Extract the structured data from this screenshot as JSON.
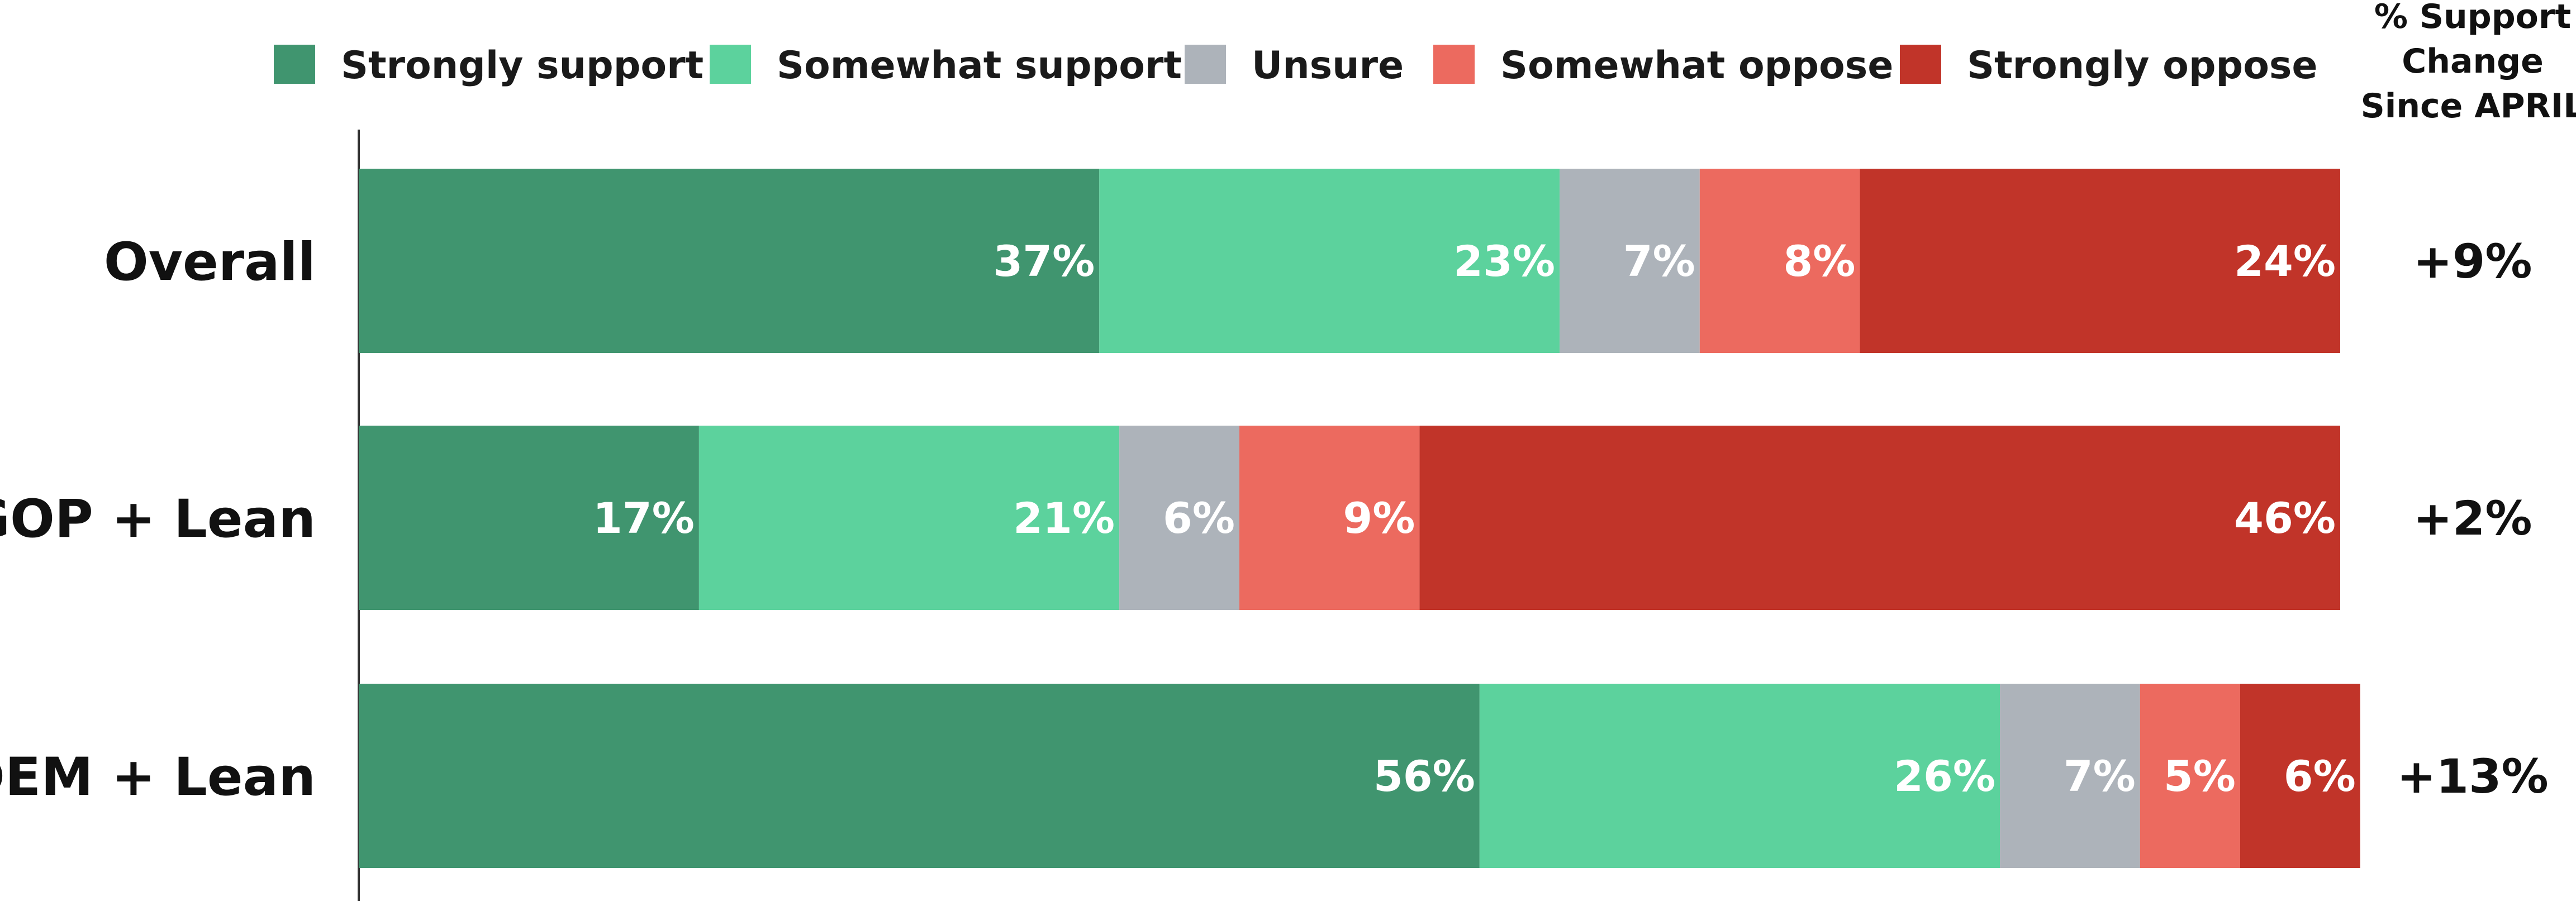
{
  "chart_data": {
    "type": "bar",
    "orientation": "horizontal",
    "stacked": true,
    "categories": [
      "Overall",
      "GOP + Lean",
      "DEM + Lean"
    ],
    "series": [
      {
        "name": "Strongly support",
        "color": "#40956F",
        "values": [
          37,
          17,
          56
        ]
      },
      {
        "name": "Somewhat support",
        "color": "#5CD29D",
        "values": [
          23,
          21,
          26
        ]
      },
      {
        "name": "Unsure",
        "color": "#ADB3BA",
        "values": [
          7,
          6,
          7
        ]
      },
      {
        "name": "Somewhat oppose",
        "color": "#EC6A5F",
        "values": [
          8,
          9,
          5
        ]
      },
      {
        "name": "Strongly oppose",
        "color": "#C13429",
        "values": [
          24,
          46,
          6
        ]
      }
    ],
    "value_suffix": "%",
    "xlim": [
      0,
      99
    ],
    "legend_position": "top",
    "grid": false,
    "side_column": {
      "header": [
        "% Support",
        "Change",
        "Since APRIL"
      ],
      "values": [
        "+9%",
        "+2%",
        "+13%"
      ]
    }
  }
}
